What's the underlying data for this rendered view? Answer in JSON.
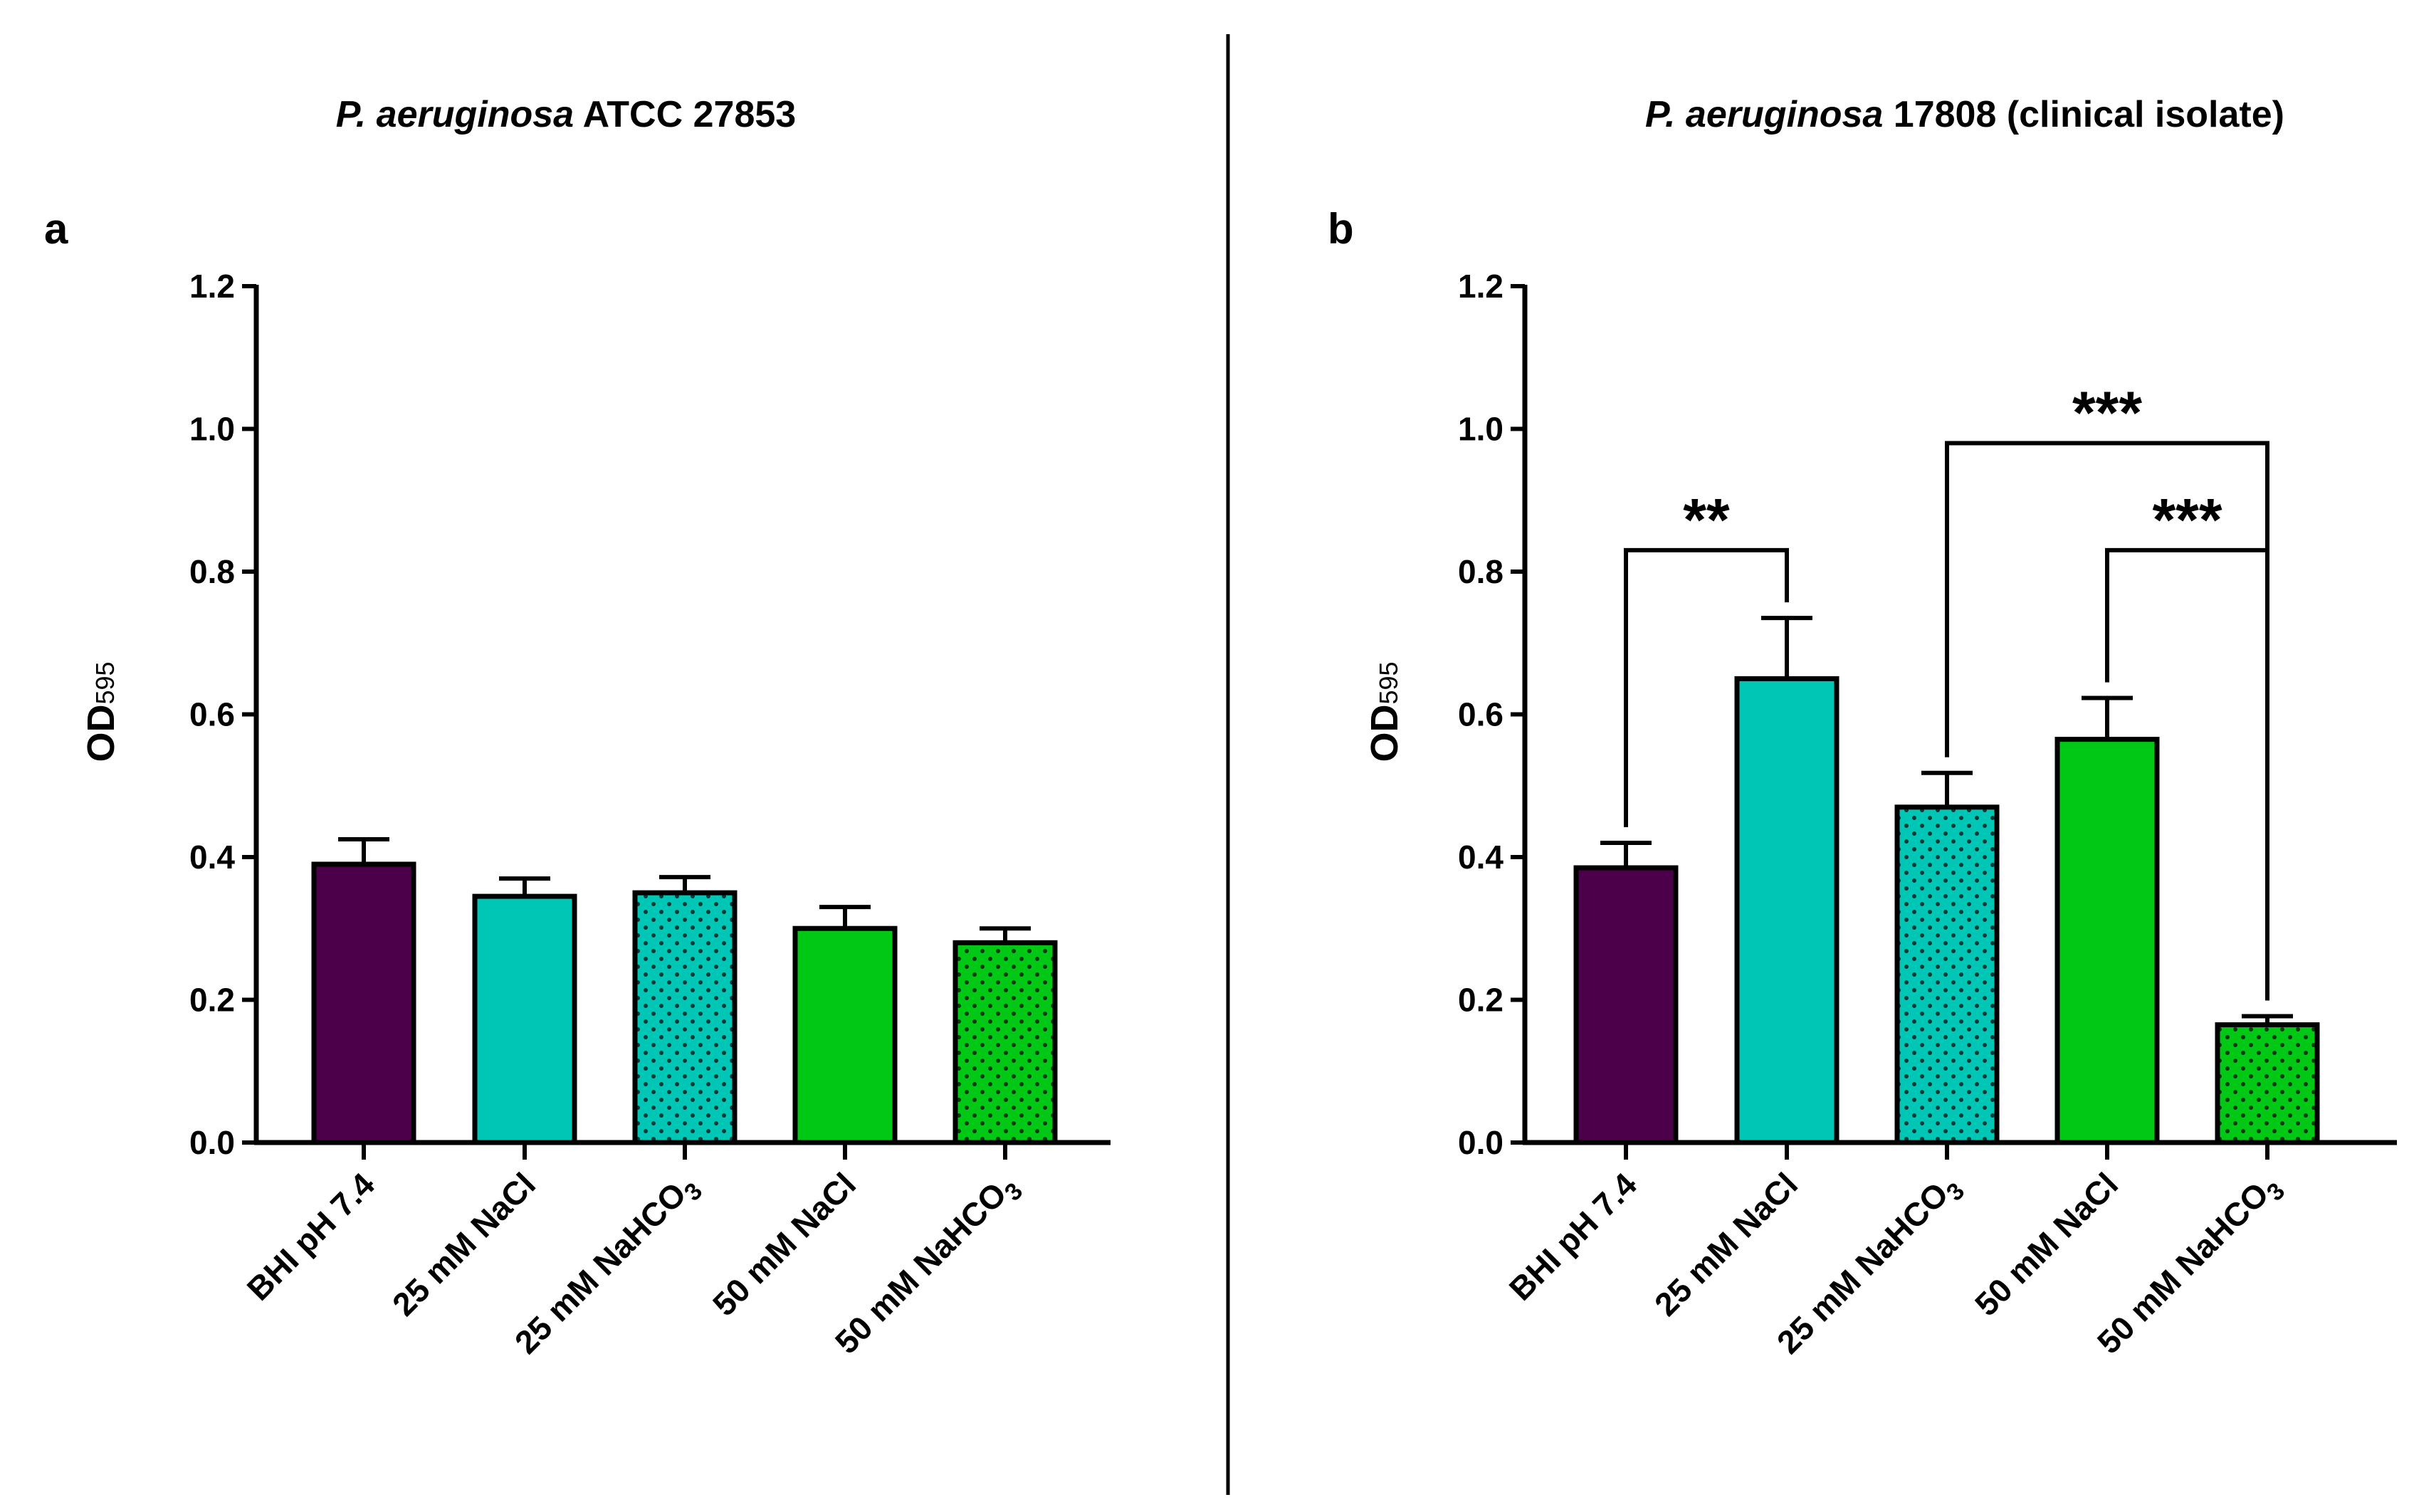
{
  "divider": true,
  "patterns": {
    "dots_teal": {
      "bg": "#00C6B6",
      "dot": "#0a3a36"
    },
    "dots_green": {
      "bg": "#00C814",
      "dot": "#0a3a0a"
    }
  },
  "chart_data": [
    {
      "type": "bar",
      "panel": "a",
      "title_italic": "P. aeruginosa",
      "title_rest": " ATCC 27853",
      "ylabel": "OD",
      "ylabel_sub": "595",
      "ylim": [
        0,
        1.2
      ],
      "yticks": [
        "0.0",
        "0.2",
        "0.4",
        "0.6",
        "0.8",
        "1.0",
        "1.2"
      ],
      "ytick_values": [
        0,
        0.2,
        0.4,
        0.6,
        0.8,
        1.0,
        1.2
      ],
      "categories": [
        {
          "main": "BHI pH 7.4",
          "sub": ""
        },
        {
          "main": "25 mM NaCl",
          "sub": ""
        },
        {
          "main": "25 mM NaHCO",
          "sub": "3"
        },
        {
          "main": "50 mM NaCl",
          "sub": ""
        },
        {
          "main": "50 mM NaHCO",
          "sub": "3"
        }
      ],
      "values": [
        0.39,
        0.345,
        0.35,
        0.3,
        0.28
      ],
      "errors": [
        0.035,
        0.025,
        0.022,
        0.03,
        0.02
      ],
      "colors": [
        "#4B0049",
        "#00C6B6",
        "dots_teal",
        "#00C814",
        "dots_green"
      ],
      "significance": []
    },
    {
      "type": "bar",
      "panel": "b",
      "title_italic": "P. aeruginosa",
      "title_rest": " 17808 (clinical isolate)",
      "ylabel": "OD",
      "ylabel_sub": "595",
      "ylim": [
        0,
        1.2
      ],
      "yticks": [
        "0.0",
        "0.2",
        "0.4",
        "0.6",
        "0.8",
        "1.0",
        "1.2"
      ],
      "ytick_values": [
        0,
        0.2,
        0.4,
        0.6,
        0.8,
        1.0,
        1.2
      ],
      "categories": [
        {
          "main": "BHI pH 7.4",
          "sub": ""
        },
        {
          "main": "25 mM NaCl",
          "sub": ""
        },
        {
          "main": "25 mM NaHCO",
          "sub": "3"
        },
        {
          "main": "50 mM NaCl",
          "sub": ""
        },
        {
          "main": "50 mM NaHCO",
          "sub": "3"
        }
      ],
      "values": [
        0.385,
        0.65,
        0.47,
        0.565,
        0.165
      ],
      "errors": [
        0.035,
        0.085,
        0.048,
        0.058,
        0.012
      ],
      "colors": [
        "#4B0049",
        "#00C6B6",
        "dots_teal",
        "#00C814",
        "dots_green"
      ],
      "significance": [
        {
          "from": 0,
          "to": 1,
          "level": 0.83,
          "label": "**"
        },
        {
          "from": 2,
          "to": 4,
          "level": 0.98,
          "label": "***"
        },
        {
          "from": 3,
          "to": 4,
          "level": 0.83,
          "label": "***"
        }
      ]
    }
  ]
}
